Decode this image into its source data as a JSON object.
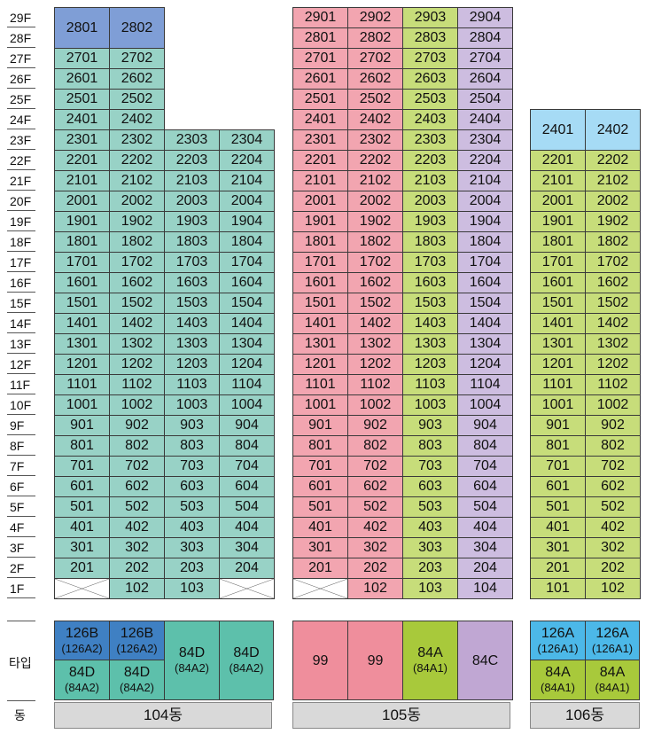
{
  "colors": {
    "teal": "#98d2c6",
    "pink": "#f2a5b0",
    "green": "#c7dd7a",
    "purple": "#cdbde0",
    "blue": "#7f9ed6",
    "lightblue": "#a6dbf5",
    "type_blue": "#3f80c3",
    "type_teal": "#5dc0ab",
    "type_pink": "#ef8e9c",
    "type_green": "#a8c93b",
    "type_purple": "#c0a7d3",
    "type_sky": "#4cb8e8"
  },
  "floors": [
    "29F",
    "28F",
    "27F",
    "26F",
    "25F",
    "24F",
    "23F",
    "22F",
    "21F",
    "20F",
    "19F",
    "18F",
    "17F",
    "16F",
    "15F",
    "14F",
    "13F",
    "12F",
    "11F",
    "10F",
    "9F",
    "8F",
    "7F",
    "6F",
    "5F",
    "4F",
    "3F",
    "2F",
    "1F"
  ],
  "labels": {
    "type": "타입",
    "dong": "동"
  },
  "buildings": [
    {
      "name": "104동",
      "columns": [
        {
          "line": "01",
          "top": 29,
          "color": "teal",
          "merged_top": [
            "2801",
            "2802"
          ],
          "first_floor": "x"
        },
        {
          "line": "02",
          "top": 29,
          "color": "teal",
          "first_floor": "102"
        },
        {
          "line": "03",
          "top": 23,
          "color": "teal",
          "first_floor": "103"
        },
        {
          "line": "04",
          "top": 23,
          "color": "teal",
          "first_floor": "x"
        }
      ],
      "types": [
        {
          "main": "126B",
          "sub": "(126A2)",
          "color": "type_blue"
        },
        {
          "main": "126B",
          "sub": "(126A2)",
          "color": "type_blue"
        },
        {
          "main": "84D",
          "sub": "(84A2)",
          "color": "type_teal"
        },
        {
          "main": "84D",
          "sub": "(84A2)",
          "color": "type_teal"
        },
        {
          "main": "84D",
          "sub": "(84A2)",
          "color": "type_teal"
        },
        {
          "main": "84D",
          "sub": "(84A2)",
          "color": "type_teal"
        }
      ]
    },
    {
      "name": "105동",
      "columns": [
        {
          "line": "01",
          "top": 29,
          "color": "pink",
          "first_floor": "x"
        },
        {
          "line": "02",
          "top": 29,
          "color": "pink",
          "first_floor": "102"
        },
        {
          "line": "03",
          "top": 29,
          "color": "green",
          "first_floor": "103"
        },
        {
          "line": "04",
          "top": 29,
          "color": "purple",
          "first_floor": "104"
        }
      ],
      "types": [
        {
          "main": "99",
          "sub": "",
          "color": "type_pink"
        },
        {
          "main": "99",
          "sub": "",
          "color": "type_pink"
        },
        {
          "main": "84A",
          "sub": "(84A1)",
          "color": "type_green"
        },
        {
          "main": "84C",
          "sub": "",
          "color": "type_purple"
        }
      ]
    },
    {
      "name": "106동",
      "columns": [
        {
          "line": "01",
          "top": 24,
          "color": "green",
          "merged_top": [
            "2401",
            "2402"
          ],
          "first_floor": "101"
        },
        {
          "line": "02",
          "top": 24,
          "color": "green",
          "first_floor": "102"
        }
      ],
      "types": [
        {
          "main": "126A",
          "sub": "(126A1)",
          "color": "type_sky"
        },
        {
          "main": "126A",
          "sub": "(126A1)",
          "color": "type_sky"
        },
        {
          "main": "84A",
          "sub": "(84A1)",
          "color": "type_green"
        },
        {
          "main": "84A",
          "sub": "(84A1)",
          "color": "type_green"
        }
      ]
    }
  ]
}
